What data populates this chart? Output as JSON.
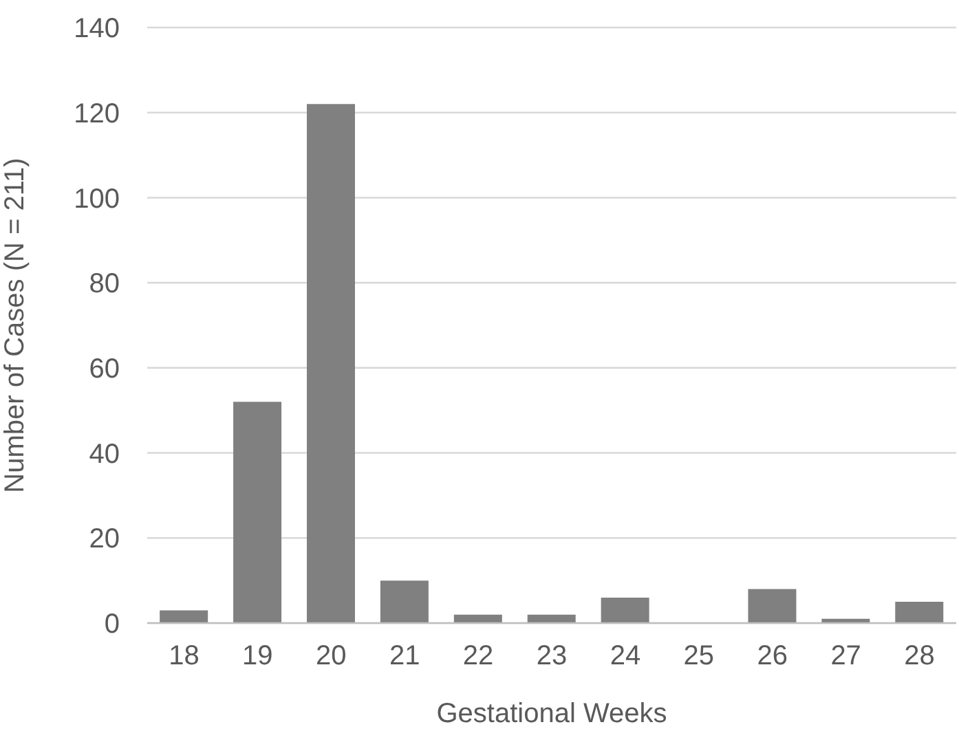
{
  "chart_data": {
    "type": "bar",
    "xlabel": "Gestational Weeks",
    "ylabel": "Number of Cases (N = 211)",
    "categories": [
      "18",
      "19",
      "20",
      "21",
      "22",
      "23",
      "24",
      "25",
      "26",
      "27",
      "28"
    ],
    "values": [
      3,
      52,
      122,
      10,
      2,
      2,
      6,
      0,
      8,
      1,
      5
    ],
    "color": "#808080",
    "ylim": [
      0,
      140
    ],
    "yticks": [
      0,
      20,
      40,
      60,
      80,
      100,
      120,
      140
    ],
    "grid": "y"
  }
}
